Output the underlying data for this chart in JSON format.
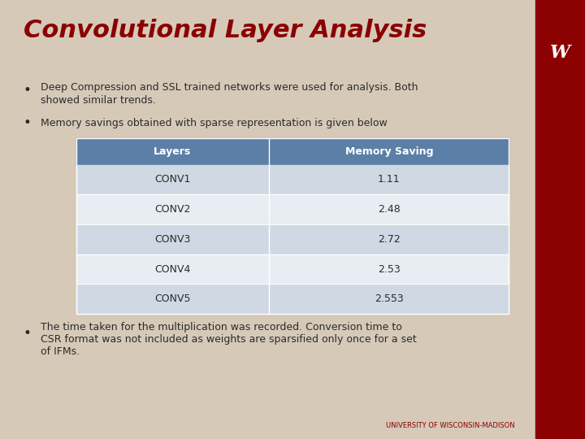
{
  "title": "Convolutional Layer Analysis",
  "title_color": "#8B0000",
  "bg_color": "#D6C9B8",
  "right_bar_color": "#8B0000",
  "bullet1_line1": "Deep Compression and SSL trained networks were used for analysis. Both",
  "bullet1_line2": "showed similar trends.",
  "bullet2": "Memory savings obtained with sparse representation is given below",
  "bullet3_line1": "The time taken for the multiplication was recorded. Conversion time to",
  "bullet3_line2": "CSR format was not included as weights are sparsified only once for a set",
  "bullet3_line3": "of IFMs.",
  "footer": "UNIVERSITY OF WISCONSIN-MADISON",
  "footer_color": "#8B0000",
  "table_header_bg": "#5B7FA6",
  "table_header_text": "#FFFFFF",
  "table_row_odd": "#E8EDF3",
  "table_row_even": "#D0D8E4",
  "table_headers": [
    "Layers",
    "Memory Saving"
  ],
  "table_rows": [
    [
      "CONV1",
      "1.11"
    ],
    [
      "CONV2",
      "2.48"
    ],
    [
      "CONV3",
      "2.72"
    ],
    [
      "CONV4",
      "2.53"
    ],
    [
      "CONV5",
      "2.553"
    ]
  ],
  "text_color": "#2B2B2B",
  "bullet_color": "#2B2B2B"
}
